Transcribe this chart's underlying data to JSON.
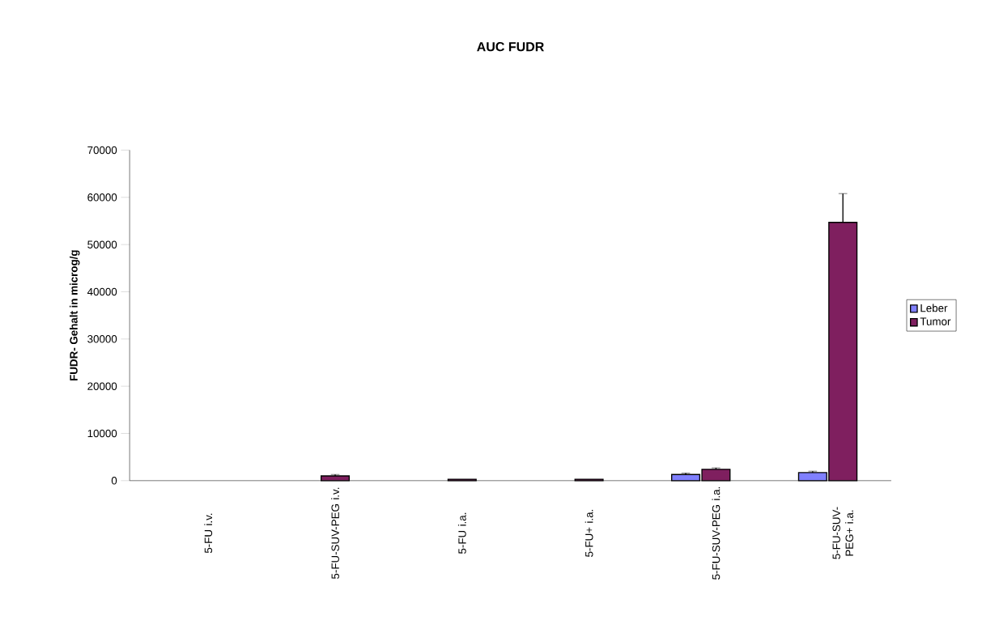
{
  "chart_data": {
    "type": "bar",
    "title": "AUC FUDR",
    "ylabel": "FUDR- Gehalt in microg/g",
    "categories": [
      "5-FU i.v.",
      "5-FU-SUV-PEG i.v.",
      "5-FU i.a.",
      "5-FU+ i.a.",
      "5-FU-SUV-PEG i.a.",
      "5-FU-SUV-PEG+ i.a."
    ],
    "series": [
      {
        "name": "Leber",
        "color": "#8080ff",
        "values": [
          null,
          null,
          null,
          null,
          1300,
          1700
        ],
        "errors": [
          null,
          null,
          null,
          null,
          300,
          300
        ]
      },
      {
        "name": "Tumor",
        "color": "#7f1f5f",
        "values": [
          null,
          1000,
          300,
          300,
          2400,
          54700
        ],
        "errors": [
          null,
          300,
          null,
          null,
          300,
          6100
        ]
      }
    ],
    "ylim": [
      0,
      70000
    ],
    "yticks": [
      0,
      10000,
      20000,
      30000,
      40000,
      50000,
      60000,
      70000
    ],
    "legend": "right",
    "grid": false
  }
}
